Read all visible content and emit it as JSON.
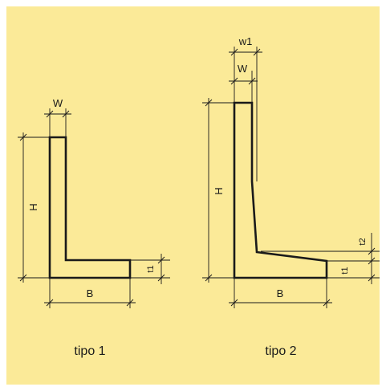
{
  "type1": {
    "caption": "tipo 1",
    "label_w": "W",
    "label_h": "H",
    "label_b": "B",
    "label_t1": "t1"
  },
  "type2": {
    "caption": "tipo 2",
    "label_w1": "w1",
    "label_w": "W",
    "label_h": "H",
    "label_b": "B",
    "label_t1": "t1",
    "label_t2": "t2"
  },
  "colors": {
    "background": "#fbea98",
    "line": "#1a1a1a"
  }
}
